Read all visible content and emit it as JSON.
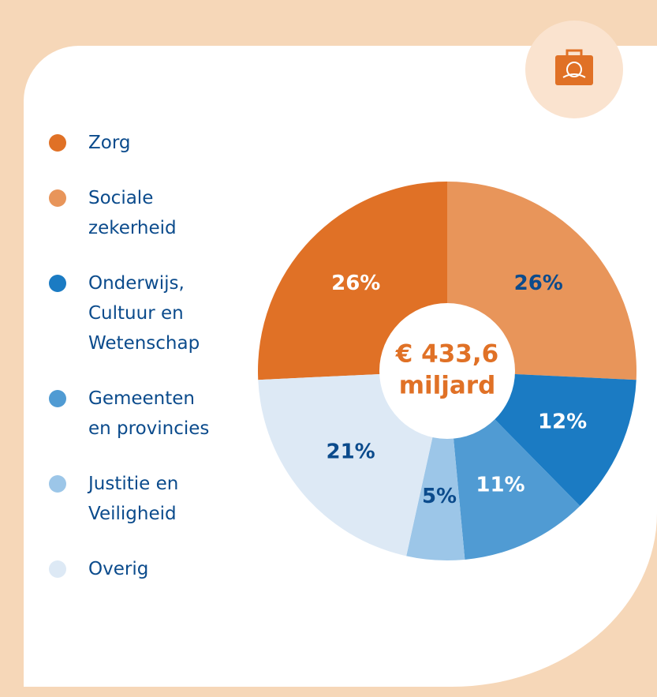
{
  "chart_data": {
    "type": "pie",
    "center_label": [
      "€ 433,6",
      "miljard"
    ],
    "categories": [
      "Zorg",
      "Sociale zekerheid",
      "Onderwijs, Cultuur en Wetenschap",
      "Gemeenten en provincies",
      "Justitie en Veiligheid",
      "Overig"
    ],
    "values": [
      26,
      26,
      12,
      11,
      5,
      21
    ],
    "value_labels": [
      "26%",
      "26%",
      "12%",
      "11%",
      "5%",
      "21%"
    ],
    "colors": [
      "#e07126",
      "#e8955a",
      "#1b7bc3",
      "#509bd3",
      "#9cc6e8",
      "#dde9f5"
    ],
    "legend": "left"
  }
}
